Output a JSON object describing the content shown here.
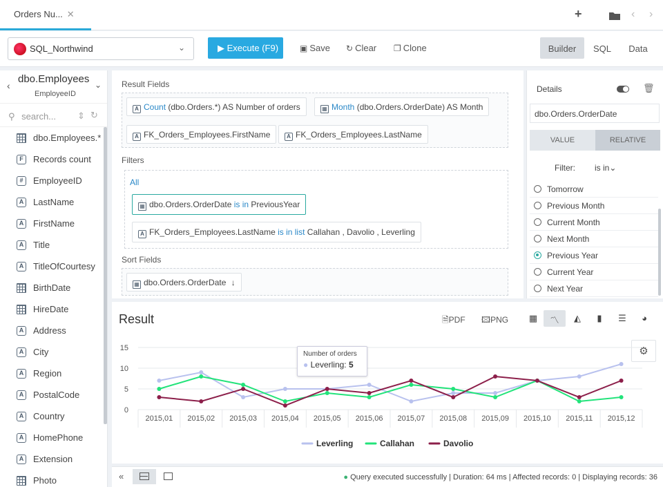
{
  "tab": {
    "label": "Orders Nu...",
    "close": "✕"
  },
  "top_icons": {
    "add": "+",
    "folder": "▰",
    "prev": "‹",
    "next": "›"
  },
  "toolbar": {
    "connection": "SQL_Northwind",
    "execute": "Execute (F9)",
    "save": "Save",
    "clear": "Clear",
    "clone": "Clone",
    "modes": [
      "Builder",
      "SQL",
      "Data"
    ]
  },
  "sidebar": {
    "title": "dbo.Employees",
    "subtitle": "EmployeeID",
    "search_placeholder": "search...",
    "items": [
      {
        "icon": "table",
        "label": "dbo.Employees.*"
      },
      {
        "icon": "F",
        "label": "Records count"
      },
      {
        "icon": "#",
        "label": "EmployeeID"
      },
      {
        "icon": "A",
        "label": "LastName"
      },
      {
        "icon": "A",
        "label": "FirstName"
      },
      {
        "icon": "A",
        "label": "Title"
      },
      {
        "icon": "A",
        "label": "TitleOfCourtesy"
      },
      {
        "icon": "table",
        "label": "BirthDate"
      },
      {
        "icon": "table",
        "label": "HireDate"
      },
      {
        "icon": "A",
        "label": "Address"
      },
      {
        "icon": "A",
        "label": "City"
      },
      {
        "icon": "A",
        "label": "Region"
      },
      {
        "icon": "A",
        "label": "PostalCode"
      },
      {
        "icon": "A",
        "label": "Country"
      },
      {
        "icon": "A",
        "label": "HomePhone"
      },
      {
        "icon": "A",
        "label": "Extension"
      },
      {
        "icon": "table",
        "label": "Photo"
      }
    ]
  },
  "builder": {
    "result_fields_label": "Result Fields",
    "result_fields": [
      {
        "func": "Count",
        "rest": "(dbo.Orders.*) AS Number of orders",
        "icon": "A"
      },
      {
        "func": "Month",
        "rest": "(dbo.Orders.OrderDate) AS Month",
        "icon": "cal"
      },
      {
        "func": "",
        "rest": "FK_Orders_Employees.FirstName",
        "icon": "A"
      },
      {
        "func": "",
        "rest": "FK_Orders_Employees.LastName",
        "icon": "A"
      }
    ],
    "filters_label": "Filters",
    "filters_all": "All",
    "filter1": {
      "field": "dbo.Orders.OrderDate",
      "op": "is in",
      "value": "PreviousYear"
    },
    "filter2": {
      "field": "FK_Orders_Employees.LastName",
      "op": "is in list",
      "value": "Callahan , Davolio , Leverling"
    },
    "sort_label": "Sort Fields",
    "sort_field": "dbo.Orders.OrderDate"
  },
  "details": {
    "title": "Details",
    "field": "dbo.Orders.OrderDate",
    "seg_value": "VALUE",
    "seg_relative": "RELATIVE",
    "filter_label": "Filter:",
    "filter_op": "is in",
    "options": [
      "Tomorrow",
      "Previous Month",
      "Current Month",
      "Next Month",
      "Previous Year",
      "Current Year",
      "Next Year"
    ],
    "selected": "Previous Year"
  },
  "result": {
    "title": "Result",
    "pdf": "PDF",
    "png": "PNG",
    "tooltip": {
      "title": "Number of orders",
      "series": "Leverling:",
      "value": "5"
    }
  },
  "status": {
    "text": "Query executed successfully | Duration: 64 ms | Affected records: 0 | Displaying records: 36"
  },
  "chart_data": {
    "type": "line",
    "x": [
      "2015,01",
      "2015,02",
      "2015,03",
      "2015,04",
      "2015,05",
      "2015,06",
      "2015,07",
      "2015,08",
      "2015,09",
      "2015,10",
      "2015,11",
      "2015,12"
    ],
    "ylim": [
      0,
      15
    ],
    "yticks": [
      0,
      5,
      10,
      15
    ],
    "grid": true,
    "legend": "bottom",
    "series": [
      {
        "name": "Leverling",
        "color": "#b8c1ee",
        "values": [
          7,
          9,
          3,
          5,
          5,
          6,
          2,
          4,
          4,
          7,
          8,
          11
        ]
      },
      {
        "name": "Callahan",
        "color": "#22e37a",
        "values": [
          5,
          8,
          6,
          2,
          4,
          3,
          6,
          5,
          3,
          7,
          2,
          3
        ]
      },
      {
        "name": "Davolio",
        "color": "#8c1f4a",
        "values": [
          3,
          2,
          5,
          1,
          5,
          4,
          7,
          3,
          8,
          7,
          3,
          7
        ]
      }
    ]
  }
}
